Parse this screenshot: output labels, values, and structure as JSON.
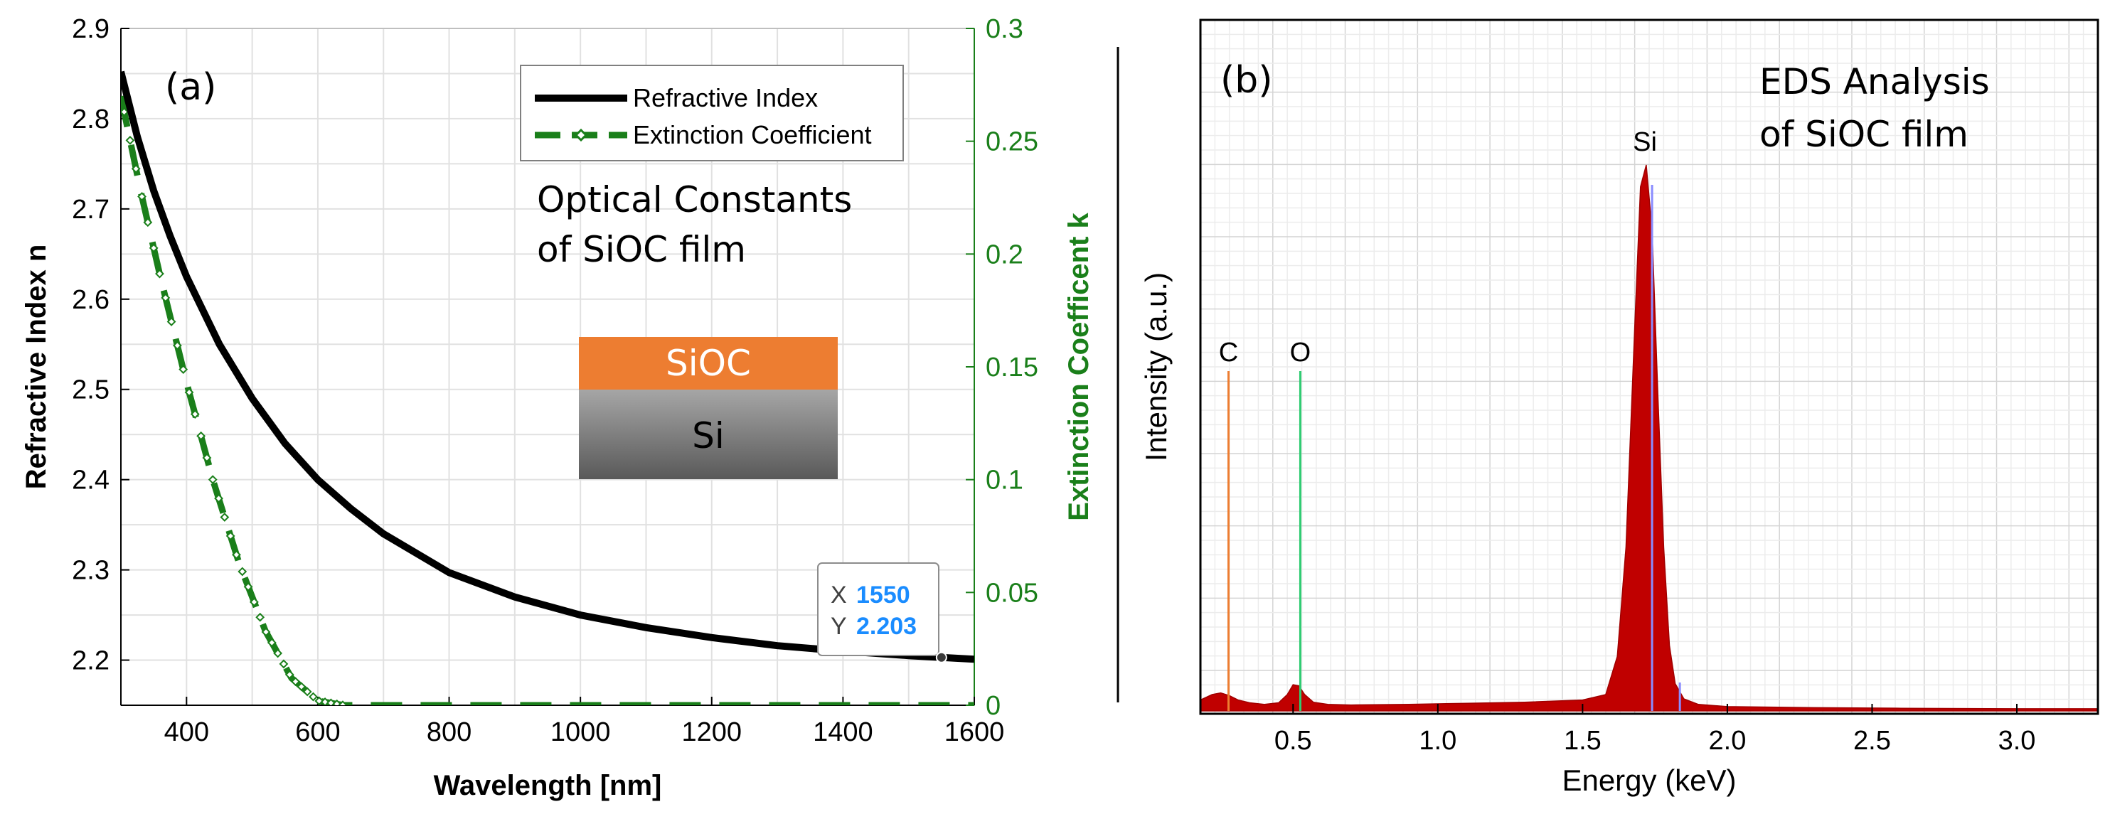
{
  "panel_a": {
    "panel_label": "(a)",
    "annotation_title_line1": "Optical Constants",
    "annotation_title_line2": "of SiOC film",
    "stack_top_label": "SiOC",
    "stack_bottom_label": "Si",
    "datatip": {
      "x_label": "X",
      "x_value": "1550",
      "y_label": "Y",
      "y_value": "2.203"
    },
    "colors": {
      "n_curve": "#000000",
      "k_curve": "#1a7f1a",
      "siox_layer": "#ed7d31",
      "si_layer_top": "#a6a6a6",
      "si_layer_bottom": "#595959",
      "datatip_value": "#1a8cff",
      "right_axis": "#1a7f1a"
    }
  },
  "panel_b": {
    "panel_label": "(b)",
    "annotation_line1": "EDS Analysis",
    "annotation_line2": "of SiOC film",
    "peak_labels": {
      "C": "C",
      "O": "O",
      "Si": "Si"
    },
    "colors": {
      "spectrum_fill": "#c00000",
      "c_marker": "#ed7d31",
      "o_marker": "#2ecc71",
      "si_marker": "#8a8cff"
    }
  },
  "chart_data": [
    {
      "type": "line",
      "xlabel": "Wavelength [nm]",
      "ylabel": "Refractive Index n",
      "y2label": "Extinction Coefficent k",
      "xlim": [
        300,
        1600
      ],
      "ylim": [
        2.15,
        2.9
      ],
      "y2lim": [
        0,
        0.3
      ],
      "x_ticks": [
        400,
        600,
        800,
        1000,
        1200,
        1400,
        1600
      ],
      "y_ticks": [
        2.2,
        2.3,
        2.4,
        2.5,
        2.6,
        2.7,
        2.8,
        2.9
      ],
      "y2_ticks": [
        0,
        0.05,
        0.1,
        0.15,
        0.2,
        0.25,
        0.3
      ],
      "grid": true,
      "legend_position": "top-right",
      "series": [
        {
          "name": "Refractive Index",
          "axis": "left",
          "x": [
            300,
            325,
            350,
            375,
            400,
            450,
            500,
            550,
            600,
            650,
            700,
            800,
            900,
            1000,
            1100,
            1200,
            1300,
            1400,
            1500,
            1550,
            1600
          ],
          "y": [
            2.852,
            2.78,
            2.72,
            2.67,
            2.625,
            2.55,
            2.49,
            2.44,
            2.4,
            2.368,
            2.34,
            2.297,
            2.27,
            2.25,
            2.236,
            2.225,
            2.216,
            2.21,
            2.205,
            2.203,
            2.201
          ]
        },
        {
          "name": "Extinction Coefficient",
          "axis": "right",
          "x": [
            300,
            330,
            360,
            400,
            440,
            480,
            520,
            560,
            600,
            640,
            700,
            800,
            900,
            1000,
            1100,
            1200,
            1300,
            1400,
            1500,
            1600
          ],
          "y": [
            0.27,
            0.228,
            0.19,
            0.143,
            0.1,
            0.063,
            0.033,
            0.012,
            0.002,
            0,
            0,
            0,
            0,
            0,
            0,
            0,
            0,
            0,
            0,
            0
          ]
        }
      ]
    },
    {
      "type": "area",
      "xlabel": "Energy (keV)",
      "ylabel": "Intensity (a.u.)",
      "xlim": [
        0.18,
        3.28
      ],
      "x_ticks": [
        0.5,
        1.0,
        1.5,
        2.0,
        2.5,
        3.0
      ],
      "x_tick_labels": [
        "0.5",
        "1.0",
        "1.5",
        "2.0",
        "2.5",
        "3.0"
      ],
      "grid": true,
      "series": [
        {
          "name": "",
          "x": [
            0.18,
            0.2,
            0.22,
            0.25,
            0.28,
            0.31,
            0.35,
            0.4,
            0.45,
            0.48,
            0.5,
            0.52,
            0.54,
            0.57,
            0.62,
            0.7,
            0.9,
            1.1,
            1.3,
            1.5,
            1.58,
            1.62,
            1.65,
            1.68,
            1.7,
            1.72,
            1.74,
            1.76,
            1.78,
            1.8,
            1.82,
            1.85,
            1.9,
            2.0,
            2.3,
            2.6,
            3.0,
            3.28
          ],
          "y": [
            0.02,
            0.025,
            0.03,
            0.033,
            0.028,
            0.02,
            0.015,
            0.012,
            0.015,
            0.03,
            0.048,
            0.046,
            0.03,
            0.016,
            0.012,
            0.011,
            0.012,
            0.014,
            0.016,
            0.02,
            0.03,
            0.1,
            0.3,
            0.7,
            0.96,
            1.0,
            0.88,
            0.58,
            0.3,
            0.12,
            0.05,
            0.022,
            0.012,
            0.008,
            0.006,
            0.005,
            0.004,
            0.004
          ]
        }
      ]
    }
  ]
}
